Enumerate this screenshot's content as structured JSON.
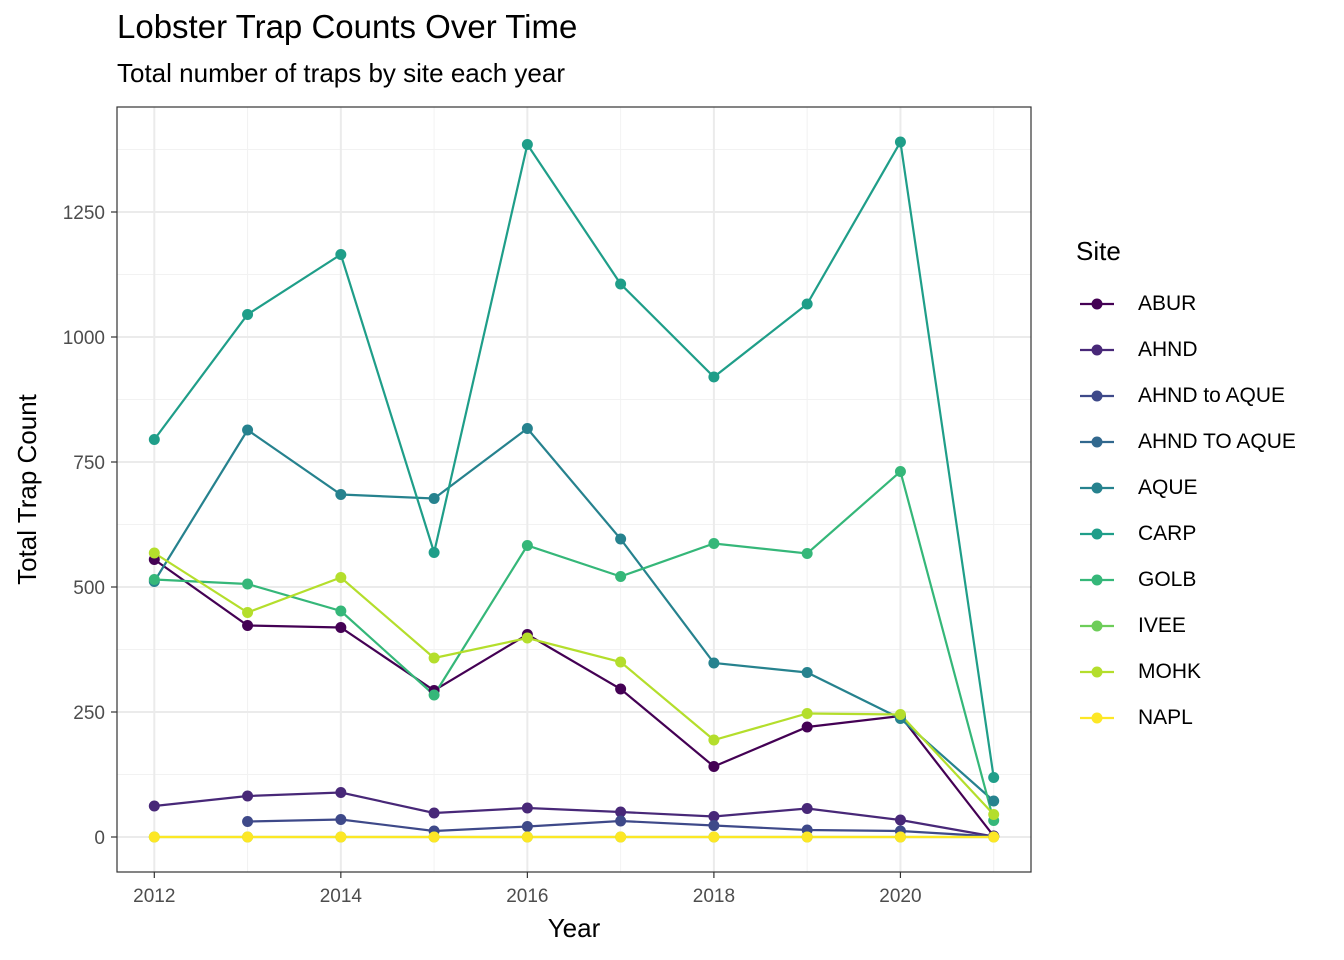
{
  "chart_data": {
    "type": "line",
    "title": "Lobster Trap Counts Over Time",
    "subtitle": "Total number of traps by site each year",
    "xlabel": "Year",
    "ylabel": "Total Trap Count",
    "xlim": [
      2011.6,
      2021.4
    ],
    "ylim": [
      -70,
      1460
    ],
    "xticks": [
      2012,
      2014,
      2016,
      2018,
      2020
    ],
    "xminor": [
      2013,
      2015,
      2017,
      2019,
      2021
    ],
    "yticks": [
      0,
      250,
      500,
      750,
      1000,
      1250
    ],
    "yminor": [
      125,
      375,
      625,
      875,
      1125,
      1375
    ],
    "grid": true,
    "legend_title": "Site",
    "legend_position": "right",
    "series": [
      {
        "name": "ABUR",
        "color": "#440154",
        "points": [
          [
            2012,
            555
          ],
          [
            2013,
            423
          ],
          [
            2014,
            419
          ],
          [
            2015,
            293
          ],
          [
            2016,
            405
          ],
          [
            2017,
            296
          ],
          [
            2018,
            141
          ],
          [
            2019,
            220
          ],
          [
            2020,
            242
          ],
          [
            2021,
            2
          ]
        ]
      },
      {
        "name": "AHND",
        "color": "#482878",
        "points": [
          [
            2012,
            62
          ],
          [
            2013,
            82
          ],
          [
            2014,
            89
          ],
          [
            2015,
            48
          ],
          [
            2016,
            58
          ],
          [
            2017,
            50
          ],
          [
            2018,
            41
          ],
          [
            2019,
            57
          ],
          [
            2020,
            34
          ],
          [
            2021,
            1
          ]
        ]
      },
      {
        "name": "AHND to AQUE",
        "color": "#3E4989",
        "points": [
          [
            2013,
            31
          ],
          [
            2014,
            35
          ],
          [
            2015,
            12
          ],
          [
            2016,
            21
          ],
          [
            2017,
            32
          ],
          [
            2018,
            23
          ],
          [
            2019,
            14
          ],
          [
            2020,
            12
          ],
          [
            2021,
            1
          ]
        ]
      },
      {
        "name": "AHND TO AQUE",
        "color": "#31688E",
        "points": []
      },
      {
        "name": "AQUE",
        "color": "#26828E",
        "points": [
          [
            2012,
            511
          ],
          [
            2013,
            814
          ],
          [
            2014,
            685
          ],
          [
            2015,
            677
          ],
          [
            2016,
            817
          ],
          [
            2017,
            596
          ],
          [
            2018,
            348
          ],
          [
            2019,
            329
          ],
          [
            2020,
            237
          ],
          [
            2021,
            72
          ]
        ]
      },
      {
        "name": "CARP",
        "color": "#1F9E89",
        "points": [
          [
            2012,
            795
          ],
          [
            2013,
            1045
          ],
          [
            2014,
            1165
          ],
          [
            2015,
            569
          ],
          [
            2016,
            1385
          ],
          [
            2017,
            1106
          ],
          [
            2018,
            920
          ],
          [
            2019,
            1066
          ],
          [
            2020,
            1390
          ],
          [
            2021,
            119
          ]
        ]
      },
      {
        "name": "GOLB",
        "color": "#35B779",
        "points": [
          [
            2012,
            515
          ],
          [
            2013,
            506
          ],
          [
            2014,
            452
          ],
          [
            2015,
            284
          ],
          [
            2016,
            583
          ],
          [
            2017,
            521
          ],
          [
            2018,
            587
          ],
          [
            2019,
            567
          ],
          [
            2020,
            731
          ],
          [
            2021,
            33
          ]
        ]
      },
      {
        "name": "IVEE",
        "color": "#6DCD59",
        "points": [
          [
            2012,
            0
          ],
          [
            2013,
            0
          ],
          [
            2014,
            0
          ],
          [
            2015,
            0
          ],
          [
            2016,
            0
          ],
          [
            2017,
            0
          ],
          [
            2018,
            0
          ],
          [
            2019,
            0
          ],
          [
            2020,
            0
          ],
          [
            2021,
            0
          ]
        ]
      },
      {
        "name": "MOHK",
        "color": "#B4DE2C",
        "points": [
          [
            2012,
            568
          ],
          [
            2013,
            449
          ],
          [
            2014,
            519
          ],
          [
            2015,
            358
          ],
          [
            2016,
            398
          ],
          [
            2017,
            350
          ],
          [
            2018,
            194
          ],
          [
            2019,
            247
          ],
          [
            2020,
            245
          ],
          [
            2021,
            45
          ]
        ]
      },
      {
        "name": "NAPL",
        "color": "#FDE725",
        "points": [
          [
            2012,
            0
          ],
          [
            2013,
            0
          ],
          [
            2014,
            0
          ],
          [
            2015,
            0
          ],
          [
            2016,
            0
          ],
          [
            2017,
            0
          ],
          [
            2018,
            0
          ],
          [
            2019,
            0
          ],
          [
            2020,
            0
          ],
          [
            2021,
            0
          ]
        ]
      }
    ]
  }
}
